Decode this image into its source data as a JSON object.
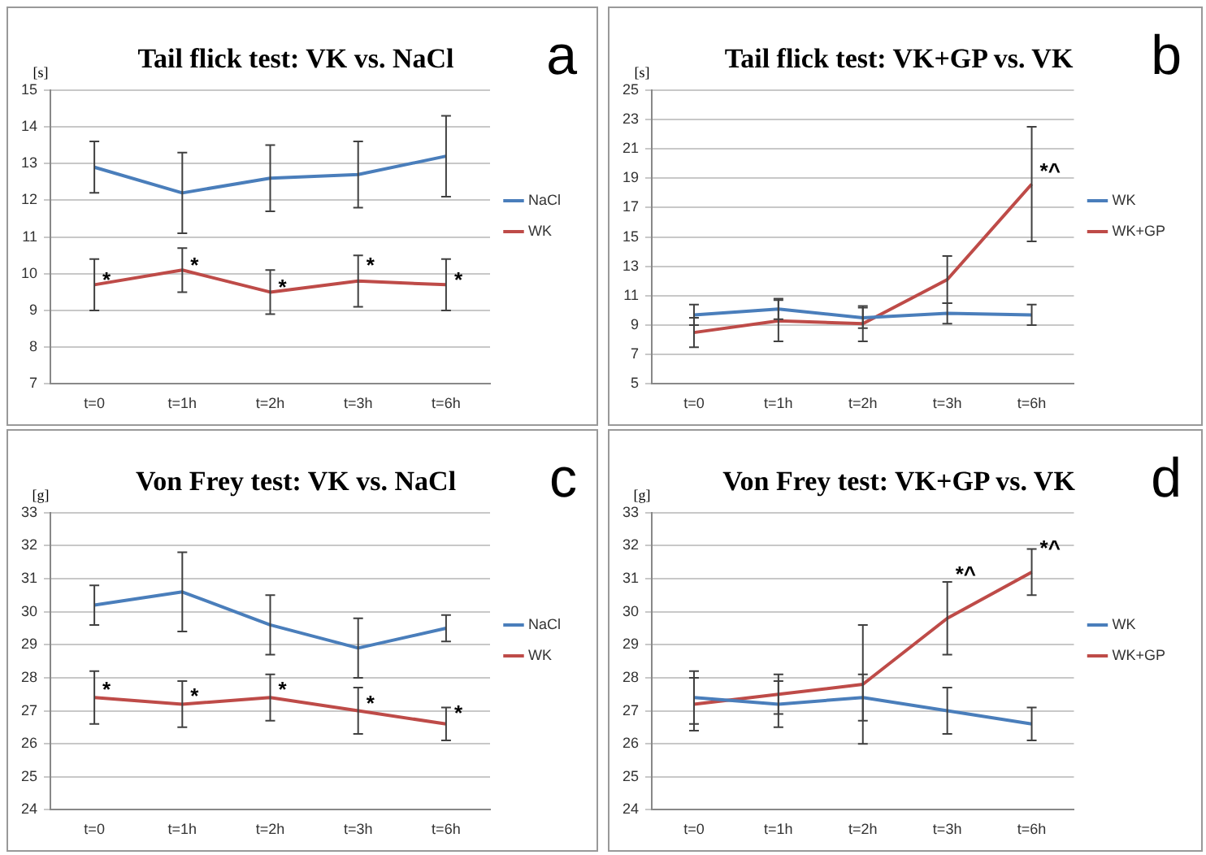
{
  "chart_data": [
    {
      "type": "line",
      "title": "Tail flick test: VK vs. NaCl",
      "ylabel": "[s]",
      "categories": [
        "t=0",
        "t=1h",
        "t=2h",
        "t=3h",
        "t=6h"
      ],
      "series": [
        {
          "name": "NaCl",
          "color": "#4a7ebb",
          "values": [
            12.9,
            12.2,
            12.6,
            12.7,
            13.2
          ],
          "errors": [
            0.7,
            1.1,
            0.9,
            0.9,
            1.1
          ]
        },
        {
          "name": "WK",
          "color": "#be4b48",
          "values": [
            9.7,
            10.1,
            9.5,
            9.8,
            9.7
          ],
          "errors": [
            0.7,
            0.6,
            0.6,
            0.7,
            0.7
          ]
        }
      ],
      "ylim": [
        7,
        15
      ],
      "yticks": [
        7,
        8,
        9,
        10,
        11,
        12,
        13,
        14,
        15
      ],
      "grid": "y",
      "legend": "right",
      "marker": "none",
      "annotations": [
        "a",
        {
          "text": "*",
          "x": "t=0",
          "y": 9.8
        },
        {
          "text": "*",
          "x": "t=1h",
          "y": 10.2
        },
        {
          "text": "*",
          "x": "t=2h",
          "y": 9.6
        },
        {
          "text": "*",
          "x": "t=3h",
          "y": 10.2
        },
        {
          "text": "*",
          "x": "t=6h",
          "y": 9.8
        }
      ]
    },
    {
      "type": "line",
      "title": "Tail flick test: VK+GP vs. VK",
      "ylabel": "[s]",
      "categories": [
        "t=0",
        "t=1h",
        "t=2h",
        "t=3h",
        "t=6h"
      ],
      "series": [
        {
          "name": "WK",
          "color": "#4a7ebb",
          "values": [
            9.7,
            10.1,
            9.5,
            9.8,
            9.7
          ],
          "errors": [
            0.7,
            0.7,
            0.7,
            0.7,
            0.7
          ]
        },
        {
          "name": "WK+GP",
          "color": "#be4b48",
          "values": [
            8.5,
            9.3,
            9.1,
            12.1,
            18.6
          ],
          "errors": [
            1.0,
            1.4,
            1.2,
            1.6,
            3.9
          ]
        }
      ],
      "ylim": [
        5,
        25
      ],
      "yticks": [
        5,
        7,
        9,
        11,
        13,
        15,
        17,
        19,
        21,
        23,
        25
      ],
      "grid": "y",
      "legend": "right",
      "marker": "none",
      "annotations": [
        "b",
        {
          "text": "*^",
          "x": "t=6h",
          "y": 19.4
        }
      ]
    },
    {
      "type": "line",
      "title": "Von Frey test: VK vs. NaCl",
      "ylabel": "[g]",
      "categories": [
        "t=0",
        "t=1h",
        "t=2h",
        "t=3h",
        "t=6h"
      ],
      "series": [
        {
          "name": "NaCl",
          "color": "#4a7ebb",
          "values": [
            30.2,
            30.6,
            29.6,
            28.9,
            29.5
          ],
          "errors": [
            0.6,
            1.2,
            0.9,
            0.9,
            0.4
          ]
        },
        {
          "name": "WK",
          "color": "#be4b48",
          "values": [
            27.4,
            27.2,
            27.4,
            27.0,
            26.6
          ],
          "errors": [
            0.8,
            0.7,
            0.7,
            0.7,
            0.5
          ]
        }
      ],
      "ylim": [
        24,
        33
      ],
      "yticks": [
        24,
        25,
        26,
        27,
        28,
        29,
        30,
        31,
        32,
        33
      ],
      "grid": "y",
      "legend": "right",
      "marker": "none",
      "annotations": [
        "c",
        {
          "text": "*",
          "x": "t=0",
          "y": 27.6
        },
        {
          "text": "*",
          "x": "t=1h",
          "y": 27.4
        },
        {
          "text": "*",
          "x": "t=2h",
          "y": 27.6
        },
        {
          "text": "*",
          "x": "t=3h",
          "y": 27.2
        },
        {
          "text": "*",
          "x": "t=6h",
          "y": 26.9
        }
      ]
    },
    {
      "type": "line",
      "title": "Von Frey test: VK+GP vs. VK",
      "ylabel": "[g]",
      "categories": [
        "t=0",
        "t=1h",
        "t=2h",
        "t=3h",
        "t=6h"
      ],
      "series": [
        {
          "name": "WK",
          "color": "#4a7ebb",
          "values": [
            27.4,
            27.2,
            27.4,
            27.0,
            26.6
          ],
          "errors": [
            0.8,
            0.7,
            0.7,
            0.7,
            0.5
          ]
        },
        {
          "name": "WK+GP",
          "color": "#be4b48",
          "values": [
            27.2,
            27.5,
            27.8,
            29.8,
            31.2
          ],
          "errors": [
            0.8,
            0.6,
            1.8,
            1.1,
            0.7
          ]
        }
      ],
      "ylim": [
        24,
        33
      ],
      "yticks": [
        24,
        25,
        26,
        27,
        28,
        29,
        30,
        31,
        32,
        33
      ],
      "grid": "y",
      "legend": "right",
      "marker": "none",
      "annotations": [
        "d",
        {
          "text": "*^",
          "x": "t=3h",
          "y": 31.1
        },
        {
          "text": "*^",
          "x": "t=6h",
          "y": 31.9
        }
      ]
    }
  ]
}
